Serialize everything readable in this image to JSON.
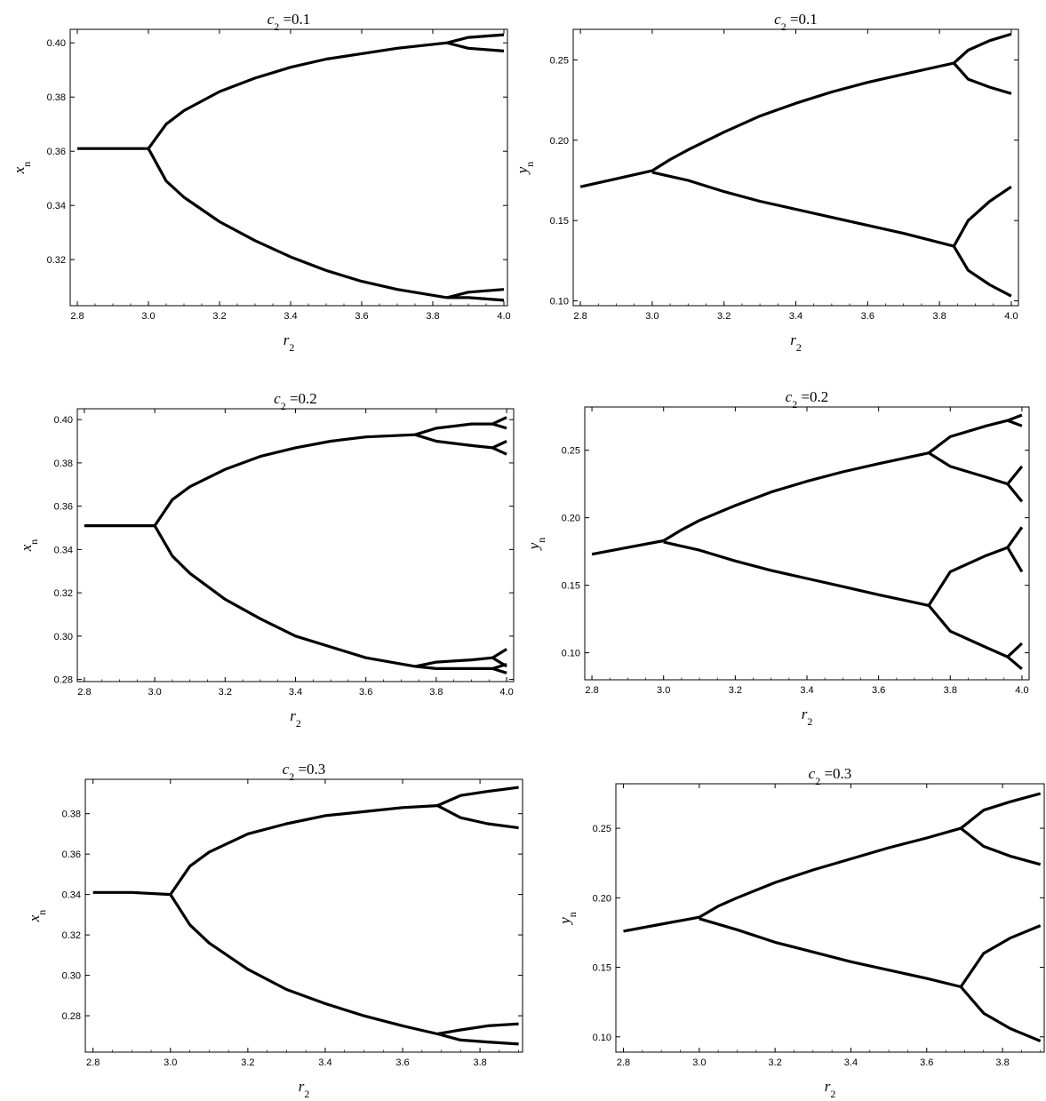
{
  "figure": {
    "background": "#ffffff",
    "ink": "#000000"
  },
  "chart_data": [
    {
      "type": "scatter",
      "subtype": "bifurcation-diagram",
      "title": "c2 = 0.1",
      "title_parts": {
        "var": "c",
        "sub": "2",
        "rest": " =0.1"
      },
      "xlabel": {
        "var": "r",
        "sub": "2"
      },
      "ylabel": {
        "var": "x",
        "sub": "n"
      },
      "xlim": [
        2.78,
        4.01
      ],
      "ylim": [
        0.303,
        0.405
      ],
      "xticks": [
        "2.8",
        "3.0",
        "3.2",
        "3.4",
        "3.6",
        "3.8",
        "4.0"
      ],
      "yticks": [
        "0.32",
        "0.34",
        "0.36",
        "0.38",
        "0.40"
      ],
      "bifurcation_points": [
        3.0,
        3.84
      ],
      "branches": [
        {
          "x": [
            2.8,
            2.9,
            3.0
          ],
          "y": [
            0.361,
            0.361,
            0.361
          ]
        },
        {
          "x": [
            3.0,
            3.05,
            3.1,
            3.2,
            3.3,
            3.4,
            3.5,
            3.6,
            3.7,
            3.84
          ],
          "y": [
            0.361,
            0.37,
            0.375,
            0.382,
            0.387,
            0.391,
            0.394,
            0.396,
            0.398,
            0.4
          ]
        },
        {
          "x": [
            3.0,
            3.05,
            3.1,
            3.2,
            3.3,
            3.4,
            3.5,
            3.6,
            3.7,
            3.84
          ],
          "y": [
            0.361,
            0.349,
            0.343,
            0.334,
            0.327,
            0.321,
            0.316,
            0.312,
            0.309,
            0.306
          ]
        },
        {
          "x": [
            3.84,
            3.9,
            4.0
          ],
          "y": [
            0.4,
            0.402,
            0.403
          ]
        },
        {
          "x": [
            3.84,
            3.9,
            4.0
          ],
          "y": [
            0.4,
            0.398,
            0.397
          ]
        },
        {
          "x": [
            3.84,
            3.9,
            4.0
          ],
          "y": [
            0.306,
            0.308,
            0.309
          ]
        },
        {
          "x": [
            3.84,
            3.9,
            4.0
          ],
          "y": [
            0.306,
            0.306,
            0.305
          ]
        }
      ]
    },
    {
      "type": "scatter",
      "subtype": "bifurcation-diagram",
      "title": "c2 = 0.1",
      "title_parts": {
        "var": "c",
        "sub": "2",
        "rest": " =0.1"
      },
      "xlabel": {
        "var": "r",
        "sub": "2"
      },
      "ylabel": {
        "var": "y",
        "sub": "n"
      },
      "xlim": [
        2.78,
        4.02
      ],
      "ylim": [
        0.097,
        0.269
      ],
      "xticks": [
        "2.8",
        "3.0",
        "3.2",
        "3.4",
        "3.6",
        "3.8",
        "4.0"
      ],
      "yticks": [
        "0.10",
        "0.15",
        "0.20",
        "0.25"
      ],
      "bifurcation_points": [
        3.0,
        3.84
      ],
      "branches": [
        {
          "x": [
            2.8,
            2.9,
            3.0
          ],
          "y": [
            0.171,
            0.176,
            0.181
          ]
        },
        {
          "x": [
            3.0,
            3.05,
            3.1,
            3.2,
            3.3,
            3.4,
            3.5,
            3.6,
            3.7,
            3.84
          ],
          "y": [
            0.181,
            0.188,
            0.194,
            0.205,
            0.215,
            0.223,
            0.23,
            0.236,
            0.241,
            0.248
          ]
        },
        {
          "x": [
            3.0,
            3.1,
            3.2,
            3.3,
            3.4,
            3.5,
            3.6,
            3.7,
            3.84
          ],
          "y": [
            0.18,
            0.175,
            0.168,
            0.162,
            0.157,
            0.152,
            0.147,
            0.142,
            0.134
          ]
        },
        {
          "x": [
            3.84,
            3.88,
            3.94,
            4.0
          ],
          "y": [
            0.248,
            0.256,
            0.262,
            0.266
          ]
        },
        {
          "x": [
            3.84,
            3.88,
            3.94,
            4.0
          ],
          "y": [
            0.248,
            0.238,
            0.233,
            0.229
          ]
        },
        {
          "x": [
            3.84,
            3.88,
            3.94,
            4.0
          ],
          "y": [
            0.134,
            0.15,
            0.162,
            0.171
          ]
        },
        {
          "x": [
            3.84,
            3.88,
            3.94,
            4.0
          ],
          "y": [
            0.134,
            0.119,
            0.11,
            0.103
          ]
        }
      ]
    },
    {
      "type": "scatter",
      "subtype": "bifurcation-diagram",
      "title": "c2 = 0.2",
      "title_parts": {
        "var": "c",
        "sub": "2",
        "rest": " =0.2"
      },
      "xlabel": {
        "var": "r",
        "sub": "2"
      },
      "ylabel": {
        "var": "x",
        "sub": "n"
      },
      "xlim": [
        2.78,
        4.02
      ],
      "ylim": [
        0.279,
        0.405
      ],
      "xticks": [
        "2.8",
        "3.0",
        "3.2",
        "3.4",
        "3.6",
        "3.8",
        "4.0"
      ],
      "yticks": [
        "0.28",
        "0.30",
        "0.32",
        "0.34",
        "0.36",
        "0.38",
        "0.40"
      ],
      "bifurcation_points": [
        3.0,
        3.74,
        3.96
      ],
      "branches": [
        {
          "x": [
            2.8,
            2.9,
            3.0
          ],
          "y": [
            0.351,
            0.351,
            0.351
          ]
        },
        {
          "x": [
            3.0,
            3.05,
            3.1,
            3.2,
            3.3,
            3.4,
            3.5,
            3.6,
            3.74
          ],
          "y": [
            0.351,
            0.363,
            0.369,
            0.377,
            0.383,
            0.387,
            0.39,
            0.392,
            0.393
          ]
        },
        {
          "x": [
            3.0,
            3.05,
            3.1,
            3.2,
            3.3,
            3.4,
            3.5,
            3.6,
            3.74
          ],
          "y": [
            0.351,
            0.337,
            0.329,
            0.317,
            0.308,
            0.3,
            0.295,
            0.29,
            0.286
          ]
        },
        {
          "x": [
            3.74,
            3.8,
            3.9,
            3.96
          ],
          "y": [
            0.393,
            0.396,
            0.398,
            0.398
          ]
        },
        {
          "x": [
            3.96,
            4.0
          ],
          "y": [
            0.398,
            0.401
          ]
        },
        {
          "x": [
            3.96,
            4.0
          ],
          "y": [
            0.398,
            0.396
          ]
        },
        {
          "x": [
            3.74,
            3.8,
            3.9,
            3.96
          ],
          "y": [
            0.393,
            0.39,
            0.388,
            0.387
          ]
        },
        {
          "x": [
            3.96,
            4.0
          ],
          "y": [
            0.387,
            0.39
          ]
        },
        {
          "x": [
            3.96,
            4.0
          ],
          "y": [
            0.387,
            0.384
          ]
        },
        {
          "x": [
            3.74,
            3.8,
            3.9,
            3.96
          ],
          "y": [
            0.286,
            0.288,
            0.289,
            0.29
          ]
        },
        {
          "x": [
            3.96,
            4.0
          ],
          "y": [
            0.29,
            0.294
          ]
        },
        {
          "x": [
            3.96,
            4.0
          ],
          "y": [
            0.29,
            0.286
          ]
        },
        {
          "x": [
            3.74,
            3.8,
            3.9,
            3.96
          ],
          "y": [
            0.286,
            0.285,
            0.285,
            0.285
          ]
        },
        {
          "x": [
            3.96,
            4.0
          ],
          "y": [
            0.285,
            0.287
          ]
        },
        {
          "x": [
            3.96,
            4.0
          ],
          "y": [
            0.285,
            0.283
          ]
        }
      ]
    },
    {
      "type": "scatter",
      "subtype": "bifurcation-diagram",
      "title": "c2 = 0.2",
      "title_parts": {
        "var": "c",
        "sub": "2",
        "rest": " =0.2"
      },
      "xlabel": {
        "var": "r",
        "sub": "2"
      },
      "ylabel": {
        "var": "y",
        "sub": "n"
      },
      "xlim": [
        2.78,
        4.02
      ],
      "ylim": [
        0.08,
        0.282
      ],
      "xticks": [
        "2.8",
        "3.0",
        "3.2",
        "3.4",
        "3.6",
        "3.8",
        "4.0"
      ],
      "yticks": [
        "0.10",
        "0.15",
        "0.20",
        "0.25"
      ],
      "bifurcation_points": [
        3.0,
        3.74,
        3.96
      ],
      "branches": [
        {
          "x": [
            2.8,
            2.9,
            3.0
          ],
          "y": [
            0.173,
            0.178,
            0.183
          ]
        },
        {
          "x": [
            3.0,
            3.05,
            3.1,
            3.2,
            3.3,
            3.4,
            3.5,
            3.6,
            3.74
          ],
          "y": [
            0.183,
            0.191,
            0.198,
            0.209,
            0.219,
            0.227,
            0.234,
            0.24,
            0.248
          ]
        },
        {
          "x": [
            3.0,
            3.1,
            3.2,
            3.3,
            3.4,
            3.5,
            3.6,
            3.74
          ],
          "y": [
            0.182,
            0.176,
            0.168,
            0.161,
            0.155,
            0.149,
            0.143,
            0.135
          ]
        },
        {
          "x": [
            3.74,
            3.8,
            3.9,
            3.96
          ],
          "y": [
            0.248,
            0.26,
            0.268,
            0.272
          ]
        },
        {
          "x": [
            3.96,
            4.0
          ],
          "y": [
            0.272,
            0.276
          ]
        },
        {
          "x": [
            3.96,
            4.0
          ],
          "y": [
            0.272,
            0.268
          ]
        },
        {
          "x": [
            3.74,
            3.8,
            3.9,
            3.96
          ],
          "y": [
            0.248,
            0.238,
            0.23,
            0.225
          ]
        },
        {
          "x": [
            3.96,
            4.0
          ],
          "y": [
            0.225,
            0.238
          ]
        },
        {
          "x": [
            3.96,
            4.0
          ],
          "y": [
            0.225,
            0.212
          ]
        },
        {
          "x": [
            3.74,
            3.8,
            3.9,
            3.96
          ],
          "y": [
            0.135,
            0.16,
            0.172,
            0.178
          ]
        },
        {
          "x": [
            3.96,
            4.0
          ],
          "y": [
            0.178,
            0.193
          ]
        },
        {
          "x": [
            3.96,
            4.0
          ],
          "y": [
            0.178,
            0.16
          ]
        },
        {
          "x": [
            3.74,
            3.8,
            3.9,
            3.96
          ],
          "y": [
            0.135,
            0.116,
            0.104,
            0.097
          ]
        },
        {
          "x": [
            3.96,
            4.0
          ],
          "y": [
            0.097,
            0.107
          ]
        },
        {
          "x": [
            3.96,
            4.0
          ],
          "y": [
            0.097,
            0.088
          ]
        }
      ]
    },
    {
      "type": "scatter",
      "subtype": "bifurcation-diagram",
      "title": "c2 = 0.3",
      "title_parts": {
        "var": "c",
        "sub": "2",
        "rest": " =0.3"
      },
      "xlabel": {
        "var": "r",
        "sub": "2"
      },
      "ylabel": {
        "var": "x",
        "sub": "n"
      },
      "xlim": [
        2.78,
        3.91
      ],
      "ylim": [
        0.262,
        0.397
      ],
      "xticks": [
        "2.8",
        "3.0",
        "3.2",
        "3.4",
        "3.6",
        "3.8"
      ],
      "yticks": [
        "0.28",
        "0.30",
        "0.32",
        "0.34",
        "0.36",
        "0.38"
      ],
      "bifurcation_points": [
        3.0,
        3.69
      ],
      "branches": [
        {
          "x": [
            2.8,
            2.9,
            3.0
          ],
          "y": [
            0.341,
            0.341,
            0.34
          ]
        },
        {
          "x": [
            3.0,
            3.05,
            3.1,
            3.2,
            3.3,
            3.4,
            3.5,
            3.6,
            3.69
          ],
          "y": [
            0.34,
            0.354,
            0.361,
            0.37,
            0.375,
            0.379,
            0.381,
            0.383,
            0.384
          ]
        },
        {
          "x": [
            3.0,
            3.05,
            3.1,
            3.2,
            3.3,
            3.4,
            3.5,
            3.6,
            3.69
          ],
          "y": [
            0.34,
            0.325,
            0.316,
            0.303,
            0.293,
            0.286,
            0.28,
            0.275,
            0.271
          ]
        },
        {
          "x": [
            3.69,
            3.75,
            3.82,
            3.9
          ],
          "y": [
            0.384,
            0.389,
            0.391,
            0.393
          ]
        },
        {
          "x": [
            3.69,
            3.75,
            3.82,
            3.9
          ],
          "y": [
            0.384,
            0.378,
            0.375,
            0.373
          ]
        },
        {
          "x": [
            3.69,
            3.75,
            3.82,
            3.9
          ],
          "y": [
            0.271,
            0.273,
            0.275,
            0.276
          ]
        },
        {
          "x": [
            3.69,
            3.75,
            3.82,
            3.9
          ],
          "y": [
            0.271,
            0.268,
            0.267,
            0.266
          ]
        }
      ]
    },
    {
      "type": "scatter",
      "subtype": "bifurcation-diagram",
      "title": "c2 = 0.3",
      "title_parts": {
        "var": "c",
        "sub": "2",
        "rest": " =0.3"
      },
      "xlabel": {
        "var": "r",
        "sub": "2"
      },
      "ylabel": {
        "var": "y",
        "sub": "n"
      },
      "xlim": [
        2.78,
        3.91
      ],
      "ylim": [
        0.089,
        0.282
      ],
      "xticks": [
        "2.8",
        "3.0",
        "3.2",
        "3.4",
        "3.6",
        "3.8"
      ],
      "yticks": [
        "0.10",
        "0.15",
        "0.20",
        "0.25"
      ],
      "bifurcation_points": [
        3.0,
        3.69
      ],
      "branches": [
        {
          "x": [
            2.8,
            2.9,
            3.0
          ],
          "y": [
            0.176,
            0.181,
            0.186
          ]
        },
        {
          "x": [
            3.0,
            3.05,
            3.1,
            3.2,
            3.3,
            3.4,
            3.5,
            3.6,
            3.69
          ],
          "y": [
            0.186,
            0.194,
            0.2,
            0.211,
            0.22,
            0.228,
            0.236,
            0.243,
            0.25
          ]
        },
        {
          "x": [
            3.0,
            3.1,
            3.2,
            3.3,
            3.4,
            3.5,
            3.6,
            3.69
          ],
          "y": [
            0.185,
            0.177,
            0.168,
            0.161,
            0.154,
            0.148,
            0.142,
            0.136
          ]
        },
        {
          "x": [
            3.69,
            3.75,
            3.82,
            3.9
          ],
          "y": [
            0.25,
            0.263,
            0.269,
            0.275
          ]
        },
        {
          "x": [
            3.69,
            3.75,
            3.82,
            3.9
          ],
          "y": [
            0.25,
            0.237,
            0.23,
            0.224
          ]
        },
        {
          "x": [
            3.69,
            3.75,
            3.82,
            3.9
          ],
          "y": [
            0.136,
            0.16,
            0.171,
            0.18
          ]
        },
        {
          "x": [
            3.69,
            3.75,
            3.82,
            3.9
          ],
          "y": [
            0.136,
            0.117,
            0.106,
            0.097
          ]
        }
      ]
    }
  ]
}
